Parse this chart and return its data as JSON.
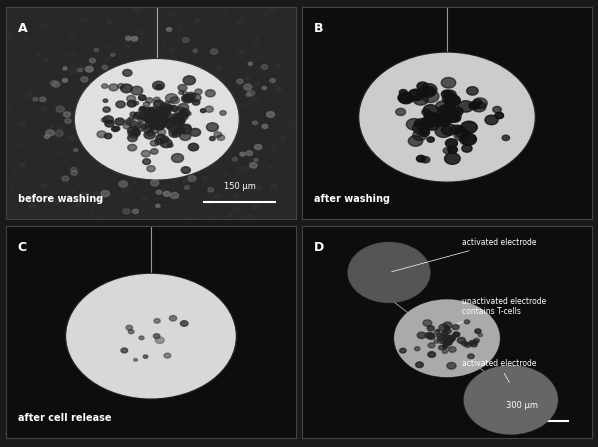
{
  "figure_bg": "#1a1a1a",
  "panel_bg_A": "#2a2a2a",
  "panel_bg_B": "#111111",
  "panel_bg_C": "#111111",
  "panel_bg_D": "#111111",
  "panels": [
    "A",
    "B",
    "C",
    "D"
  ],
  "labels_A": {
    "text": "before washing",
    "scalebar": "150 μm"
  },
  "labels_B": {
    "text": "after washing"
  },
  "labels_C": {
    "text": "after cell release"
  },
  "labels_D": {
    "annotations": [
      "activated electrode",
      "unactivated electrode\ncontains T-cells",
      "activated electrode"
    ],
    "scalebar": "300 μm"
  },
  "border_color": "#555555",
  "label_color": "#ffffff",
  "seed_A": 42,
  "seed_B": 99,
  "seed_C": 7
}
